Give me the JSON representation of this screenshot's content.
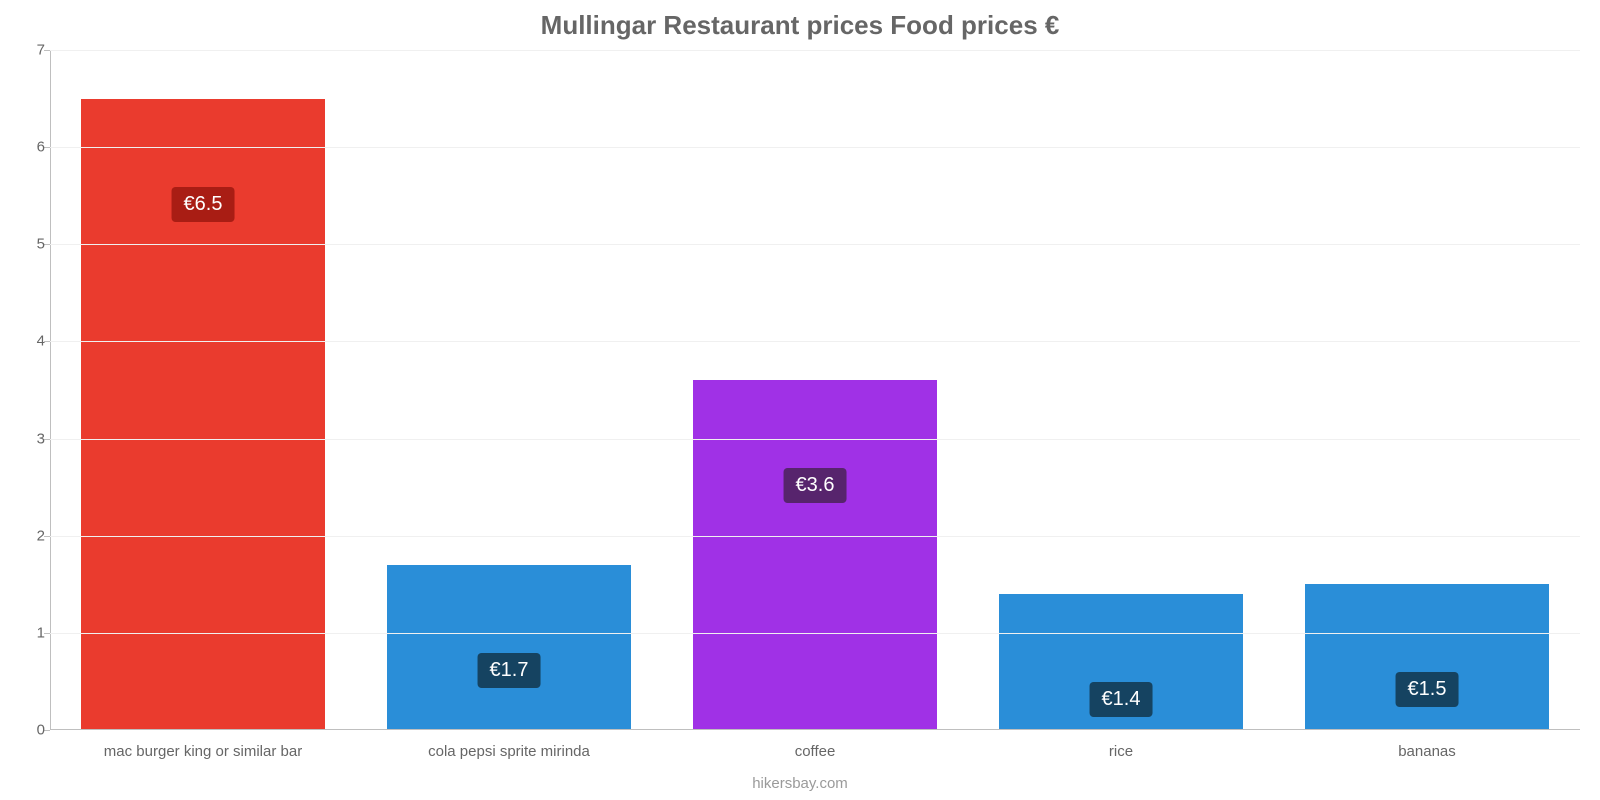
{
  "chart": {
    "type": "bar",
    "title": "Mullingar Restaurant prices Food prices €",
    "title_color": "#666666",
    "title_fontsize": 26,
    "background_color": "#ffffff",
    "grid_color": "#f0f0f0",
    "axis_color": "#bfbfbf",
    "tick_label_color": "#666666",
    "tick_label_fontsize": 15,
    "value_label_fontsize": 20,
    "y_axis": {
      "min": 0,
      "max": 7,
      "tick_step": 1,
      "ticks": [
        0,
        1,
        2,
        3,
        4,
        5,
        6,
        7
      ]
    },
    "bar_width_pct": 80,
    "categories": [
      "mac burger king or similar bar",
      "cola pepsi sprite mirinda",
      "coffee",
      "rice",
      "bananas"
    ],
    "values": [
      6.5,
      1.7,
      3.6,
      1.4,
      1.5
    ],
    "value_labels": [
      "€6.5",
      "€1.7",
      "€3.6",
      "€1.4",
      "€1.5"
    ],
    "bar_colors": [
      "#ea3b2e",
      "#2a8ed8",
      "#a031e6",
      "#2a8ed8",
      "#2a8ed8"
    ],
    "badge_colors": [
      "#a91d14",
      "#154361",
      "#57246d",
      "#154361",
      "#154361"
    ],
    "credit": "hikersbay.com",
    "credit_color": "#9a9a9a"
  }
}
